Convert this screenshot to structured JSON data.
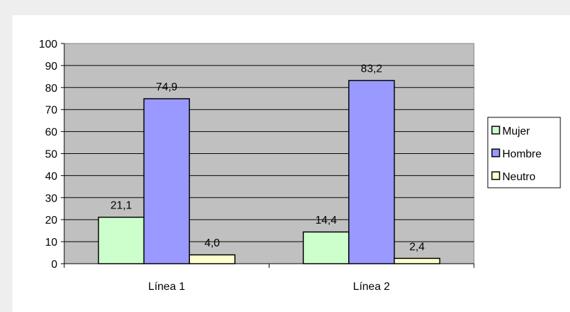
{
  "chart_data": {
    "type": "bar",
    "categories": [
      "Línea 1",
      "Línea 2"
    ],
    "series": [
      {
        "name": "Mujer",
        "values": [
          21.1,
          14.4
        ],
        "labels": [
          "21,1",
          "14,4"
        ],
        "color": "#ccffcc"
      },
      {
        "name": "Hombre",
        "values": [
          74.9,
          83.2
        ],
        "labels": [
          "74,9",
          "83,2"
        ],
        "color": "#9999ff"
      },
      {
        "name": "Neutro",
        "values": [
          4.0,
          2.4
        ],
        "labels": [
          "4,0",
          "2,4"
        ],
        "color": "#ffffcc"
      }
    ],
    "yticks": [
      "0",
      "10",
      "20",
      "30",
      "40",
      "50",
      "60",
      "70",
      "80",
      "90",
      "100"
    ],
    "ylim": [
      0,
      100
    ],
    "grid": true,
    "plot_background": "#c0c0c0",
    "legend": "right",
    "title": "",
    "xlabel": "",
    "ylabel": ""
  }
}
